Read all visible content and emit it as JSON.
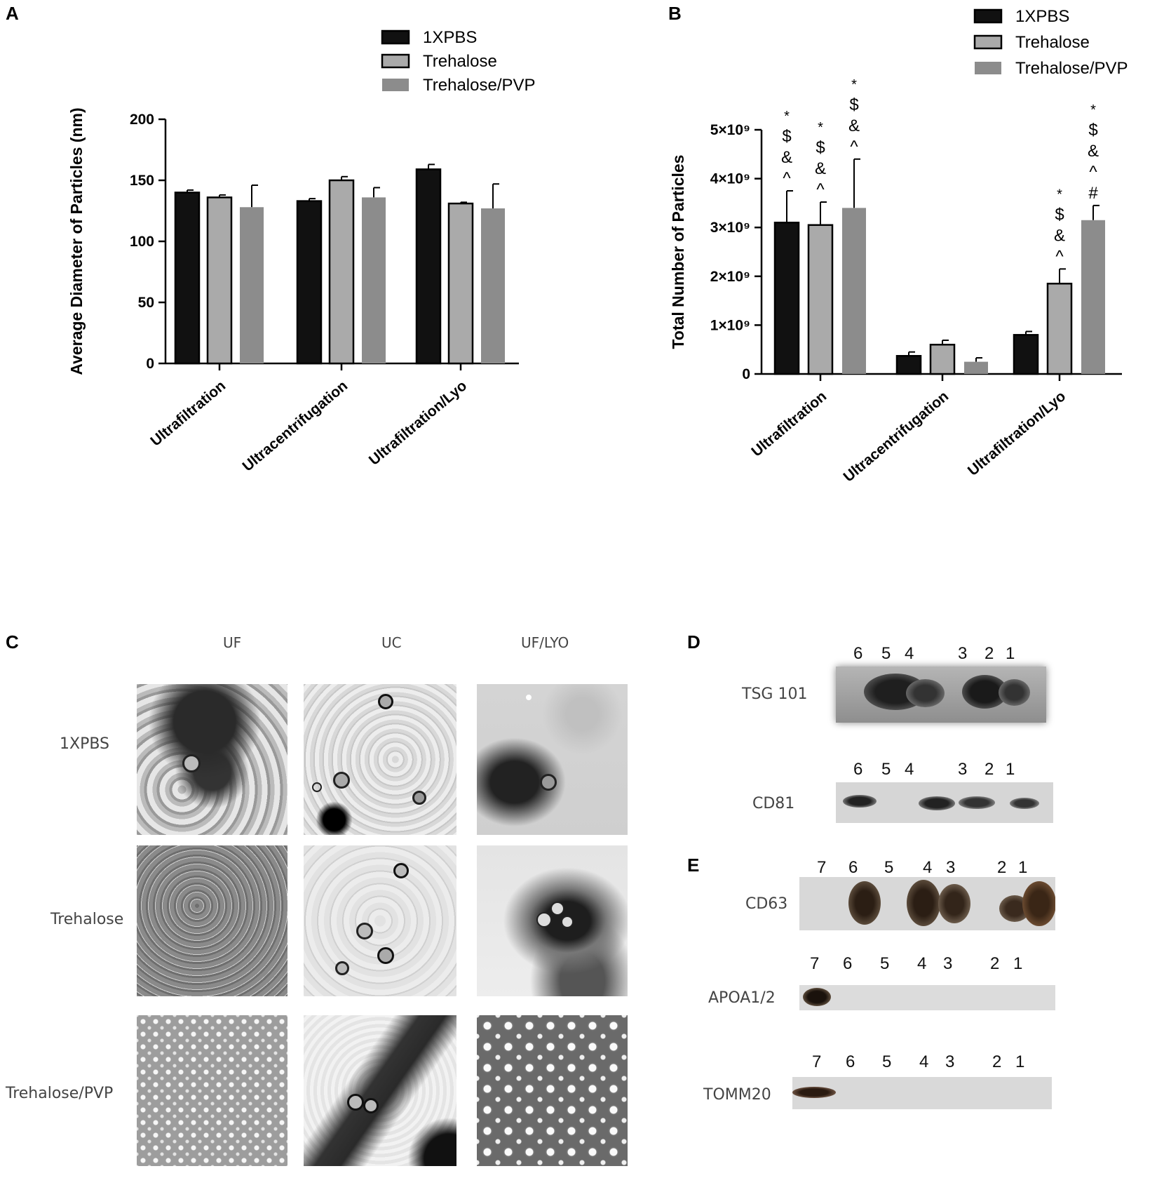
{
  "panels": {
    "A": "A",
    "B": "B",
    "C": "C",
    "D": "D",
    "E": "E"
  },
  "colors": {
    "pbs": "#111111",
    "trehalose": "#aaaaaa",
    "trehalose_pvp": "#8c8c8c"
  },
  "chart_data": [
    {
      "panel": "A",
      "type": "bar",
      "ylabel": "Average Diameter of  Particles (nm)",
      "xlabel": "",
      "categories": [
        "Ultrafiltration",
        "Ultracentrifugation",
        "Ultrafiltration/Lyo"
      ],
      "ylim": [
        0,
        200
      ],
      "yticks": [
        "0",
        "50",
        "100",
        "150",
        "200"
      ],
      "legend": [
        "1XPBS",
        "Trehalose",
        "Trehalose/PVP"
      ],
      "legend_position": "top-right",
      "series": [
        {
          "name": "1XPBS",
          "values": [
            140,
            133,
            159
          ],
          "errors": [
            2,
            2,
            4
          ]
        },
        {
          "name": "Trehalose",
          "values": [
            136,
            150,
            131
          ],
          "errors": [
            2,
            3,
            1
          ]
        },
        {
          "name": "Trehalose/PVP",
          "values": [
            128,
            136,
            127
          ],
          "errors": [
            18,
            8,
            20
          ]
        }
      ]
    },
    {
      "panel": "B",
      "type": "bar",
      "ylabel": "Total Number of  Particles",
      "xlabel": "",
      "categories": [
        "Ultrafiltration",
        "Ultracentrifugation",
        "Ultrafiltration/Lyo"
      ],
      "ylim": [
        0,
        5000000000
      ],
      "yticks": [
        "0",
        "1×10⁹",
        "2×10⁹",
        "3×10⁹",
        "4×10⁹",
        "5×10⁹"
      ],
      "legend": [
        "1XPBS",
        "Trehalose",
        "Trehalose/PVP"
      ],
      "legend_position": "top-right",
      "series": [
        {
          "name": "1XPBS",
          "values": [
            3100000000,
            370000000,
            800000000
          ],
          "errors": [
            650000000,
            80000000,
            70000000
          ]
        },
        {
          "name": "Trehalose",
          "values": [
            3050000000,
            600000000,
            1850000000
          ],
          "errors": [
            470000000,
            90000000,
            300000000
          ]
        },
        {
          "name": "Trehalose/PVP",
          "values": [
            3400000000,
            250000000,
            3150000000
          ],
          "errors": [
            1000000000,
            80000000,
            300000000
          ]
        }
      ],
      "annotations": [
        {
          "cat": 0,
          "series": 0,
          "symbols": [
            "*",
            "$",
            "&",
            "^"
          ]
        },
        {
          "cat": 0,
          "series": 1,
          "symbols": [
            "*",
            "$",
            "&",
            "^"
          ]
        },
        {
          "cat": 0,
          "series": 2,
          "symbols": [
            "*",
            "$",
            "&",
            "^"
          ]
        },
        {
          "cat": 2,
          "series": 1,
          "symbols": [
            "*",
            "$",
            "&",
            "^"
          ]
        },
        {
          "cat": 2,
          "series": 2,
          "symbols": [
            "*",
            "$",
            "&",
            "^",
            "#"
          ]
        }
      ]
    }
  ],
  "tem": {
    "columns": [
      "UF",
      "UC",
      "UF/LYO"
    ],
    "rows": [
      "1XPBS",
      "Trehalose",
      "Trehalose/PVP"
    ]
  },
  "blots_d": {
    "tsg": {
      "label": "TSG 101",
      "lanes": [
        "6",
        "5",
        "4",
        "3",
        "2",
        "1"
      ]
    },
    "cd81": {
      "label": "CD81",
      "lanes": [
        "6",
        "5",
        "4",
        "3",
        "2",
        "1"
      ]
    }
  },
  "blots_e": {
    "cd63": {
      "label": "CD63",
      "lanes": [
        "7",
        "6",
        "5",
        "4",
        "3",
        "2",
        "1"
      ]
    },
    "apoa": {
      "label": "APOA1/2",
      "lanes": [
        "7",
        "6",
        "5",
        "4",
        "3",
        "2",
        "1"
      ]
    },
    "tomm": {
      "label": "TOMM20",
      "lanes": [
        "7",
        "6",
        "5",
        "4",
        "3",
        "2",
        "1"
      ]
    }
  }
}
